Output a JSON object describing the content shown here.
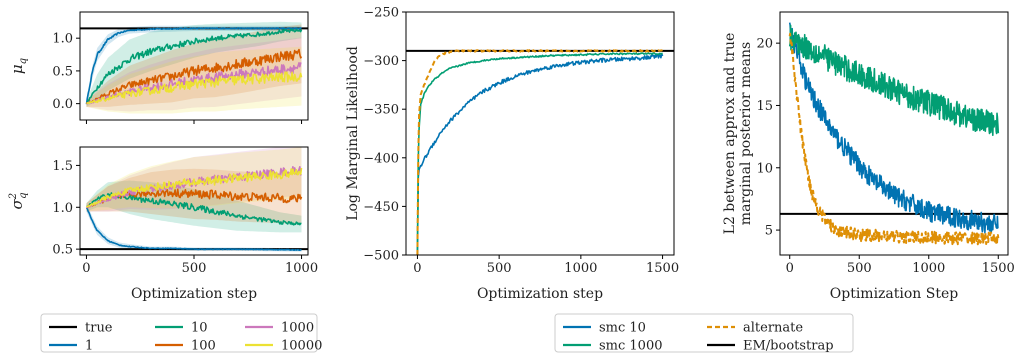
{
  "chart_data": [
    {
      "type": "line",
      "panel": "mu_q",
      "ylabel": "μ_q",
      "xlim": [
        -30,
        1030
      ],
      "ylim": [
        -0.25,
        1.4
      ],
      "xticks": [
        0,
        500,
        1000
      ],
      "yticks": [
        0.0,
        0.5,
        1.0
      ],
      "ytick_labels": [
        "0.0",
        "0.5",
        "1.0"
      ],
      "reference_line": {
        "name": "true",
        "value": 1.15
      },
      "series": [
        {
          "name": "1",
          "x": [
            0,
            25,
            50,
            100,
            150,
            200,
            300,
            500,
            700,
            1000
          ],
          "values": [
            0.0,
            0.45,
            0.75,
            0.98,
            1.08,
            1.12,
            1.14,
            1.15,
            1.15,
            1.15
          ],
          "band": [
            0.06,
            0.1,
            0.1,
            0.08,
            0.06,
            0.05,
            0.05,
            0.04,
            0.04,
            0.04
          ]
        },
        {
          "name": "10",
          "x": [
            0,
            50,
            100,
            200,
            300,
            400,
            500,
            600,
            700,
            800,
            900,
            1000
          ],
          "values": [
            0.0,
            0.25,
            0.45,
            0.68,
            0.8,
            0.88,
            0.95,
            1.0,
            1.03,
            1.06,
            1.1,
            1.12
          ],
          "band": [
            0.05,
            0.2,
            0.25,
            0.3,
            0.3,
            0.28,
            0.25,
            0.22,
            0.2,
            0.18,
            0.15,
            0.12
          ]
        },
        {
          "name": "100",
          "x": [
            0,
            100,
            200,
            300,
            400,
            500,
            600,
            700,
            800,
            900,
            1000
          ],
          "values": [
            0.0,
            0.15,
            0.28,
            0.35,
            0.42,
            0.5,
            0.55,
            0.6,
            0.66,
            0.72,
            0.76
          ],
          "band": [
            0.05,
            0.2,
            0.3,
            0.35,
            0.4,
            0.42,
            0.45,
            0.45,
            0.45,
            0.45,
            0.45
          ]
        },
        {
          "name": "1000",
          "x": [
            0,
            100,
            200,
            300,
            400,
            500,
            600,
            700,
            800,
            900,
            1000
          ],
          "values": [
            0.0,
            0.1,
            0.18,
            0.25,
            0.3,
            0.36,
            0.4,
            0.44,
            0.48,
            0.52,
            0.56
          ],
          "band": [
            0.05,
            0.2,
            0.3,
            0.35,
            0.4,
            0.42,
            0.45,
            0.45,
            0.45,
            0.45,
            0.45
          ]
        },
        {
          "name": "10000",
          "x": [
            0,
            100,
            200,
            300,
            400,
            500,
            600,
            700,
            800,
            900,
            1000
          ],
          "values": [
            0.0,
            0.08,
            0.15,
            0.2,
            0.25,
            0.3,
            0.33,
            0.36,
            0.38,
            0.4,
            0.42
          ],
          "band": [
            0.05,
            0.2,
            0.3,
            0.35,
            0.4,
            0.42,
            0.45,
            0.45,
            0.45,
            0.45,
            0.45
          ]
        }
      ]
    },
    {
      "type": "line",
      "panel": "sigma2_q",
      "ylabel": "σ²_q",
      "xlabel": "Optimization step",
      "xlim": [
        -30,
        1030
      ],
      "ylim": [
        0.43,
        1.72
      ],
      "xticks": [
        0,
        500,
        1000
      ],
      "yticks": [
        0.5,
        1.0,
        1.5
      ],
      "ytick_labels": [
        "0.5",
        "1.0",
        "1.5"
      ],
      "reference_line": {
        "name": "true",
        "value": 0.5
      },
      "series": [
        {
          "name": "1",
          "x": [
            0,
            25,
            50,
            100,
            150,
            200,
            300,
            400,
            500,
            700,
            1000
          ],
          "values": [
            1.0,
            0.85,
            0.72,
            0.6,
            0.55,
            0.53,
            0.51,
            0.51,
            0.5,
            0.5,
            0.49
          ],
          "band": [
            0.05,
            0.05,
            0.05,
            0.04,
            0.03,
            0.03,
            0.02,
            0.02,
            0.02,
            0.02,
            0.02
          ]
        },
        {
          "name": "10",
          "x": [
            0,
            50,
            100,
            200,
            300,
            400,
            500,
            600,
            700,
            800,
            900,
            1000
          ],
          "values": [
            1.0,
            1.1,
            1.15,
            1.12,
            1.08,
            1.04,
            1.0,
            0.95,
            0.9,
            0.86,
            0.82,
            0.8
          ],
          "band": [
            0.05,
            0.1,
            0.15,
            0.2,
            0.22,
            0.22,
            0.22,
            0.2,
            0.18,
            0.15,
            0.12,
            0.1
          ]
        },
        {
          "name": "100",
          "x": [
            0,
            100,
            200,
            300,
            400,
            500,
            600,
            700,
            800,
            900,
            1000
          ],
          "values": [
            1.0,
            1.1,
            1.15,
            1.17,
            1.17,
            1.16,
            1.15,
            1.13,
            1.12,
            1.11,
            1.1
          ],
          "band": [
            0.05,
            0.15,
            0.2,
            0.25,
            0.28,
            0.3,
            0.3,
            0.3,
            0.3,
            0.3,
            0.3
          ]
        },
        {
          "name": "1000",
          "x": [
            0,
            100,
            200,
            300,
            400,
            500,
            600,
            700,
            800,
            900,
            1000
          ],
          "values": [
            1.0,
            1.1,
            1.18,
            1.22,
            1.26,
            1.3,
            1.33,
            1.36,
            1.39,
            1.42,
            1.44
          ],
          "band": [
            0.05,
            0.15,
            0.2,
            0.25,
            0.28,
            0.3,
            0.3,
            0.3,
            0.3,
            0.3,
            0.3
          ]
        },
        {
          "name": "10000",
          "x": [
            0,
            100,
            200,
            300,
            400,
            500,
            600,
            700,
            800,
            900,
            1000
          ],
          "values": [
            1.0,
            1.12,
            1.2,
            1.24,
            1.27,
            1.3,
            1.32,
            1.35,
            1.37,
            1.39,
            1.42
          ],
          "band": [
            0.05,
            0.15,
            0.2,
            0.25,
            0.28,
            0.3,
            0.3,
            0.3,
            0.3,
            0.3,
            0.3
          ]
        }
      ]
    },
    {
      "type": "line",
      "panel": "log_marginal_likelihood",
      "ylabel": "Log Marginal Likelihood",
      "xlabel": "Optimization step",
      "xlim": [
        -70,
        1570
      ],
      "ylim": [
        -500,
        -250
      ],
      "xticks": [
        0,
        500,
        1000,
        1500
      ],
      "yticks": [
        -500,
        -450,
        -400,
        -350,
        -300,
        -250
      ],
      "ytick_labels": [
        "−500",
        "−450",
        "−400",
        "−350",
        "−300",
        "−250"
      ],
      "reference_line": {
        "name": "EM/bootstrap",
        "value": -290
      },
      "series": [
        {
          "name": "smc 10",
          "x": [
            0,
            5,
            10,
            20,
            40,
            60,
            100,
            150,
            200,
            300,
            400,
            500,
            600,
            700,
            800,
            900,
            1000,
            1100,
            1200,
            1300,
            1400,
            1500
          ],
          "values": [
            -500,
            -420,
            -412,
            -408,
            -402,
            -396,
            -385,
            -372,
            -362,
            -345,
            -332,
            -323,
            -316,
            -311,
            -307,
            -304,
            -302,
            -300,
            -299,
            -298,
            -297,
            -295
          ]
        },
        {
          "name": "smc 1000",
          "x": [
            0,
            5,
            10,
            20,
            40,
            60,
            100,
            150,
            200,
            300,
            400,
            500,
            600,
            800,
            1000,
            1200,
            1500
          ],
          "values": [
            -500,
            -400,
            -370,
            -345,
            -335,
            -328,
            -320,
            -313,
            -308,
            -303,
            -300,
            -298,
            -297,
            -295,
            -294,
            -293,
            -293
          ]
        },
        {
          "name": "alternate",
          "x": [
            0,
            3,
            6,
            10,
            20,
            40,
            60,
            80,
            100,
            130,
            160,
            200,
            250,
            300,
            1500
          ],
          "values": [
            -500,
            -420,
            -380,
            -355,
            -335,
            -325,
            -318,
            -310,
            -302,
            -296,
            -293,
            -291,
            -290,
            -290,
            -290
          ]
        }
      ]
    },
    {
      "type": "line",
      "panel": "l2_error",
      "ylabel": "L2 between approx and true",
      "ylabel2": "marginal posterior means",
      "xlabel": "Optimization Step",
      "xlim": [
        -70,
        1570
      ],
      "ylim": [
        3,
        22.5
      ],
      "xticks": [
        0,
        500,
        1000,
        1500
      ],
      "yticks": [
        5,
        10,
        15,
        20
      ],
      "ytick_labels": [
        "5",
        "10",
        "15",
        "20"
      ],
      "reference_line": {
        "name": "EM/bootstrap",
        "value": 6.3
      },
      "series": [
        {
          "name": "smc 10",
          "x": [
            0,
            50,
            100,
            150,
            200,
            300,
            400,
            500,
            600,
            700,
            800,
            900,
            1000,
            1100,
            1200,
            1300,
            1400,
            1500
          ],
          "values": [
            21,
            19.5,
            17.5,
            16,
            15,
            13,
            11.5,
            10.2,
            9,
            8.2,
            7.5,
            7,
            6.5,
            6.2,
            6.0,
            5.8,
            5.6,
            5.4
          ],
          "noise": 0.8
        },
        {
          "name": "smc 1000",
          "x": [
            0,
            100,
            200,
            300,
            400,
            500,
            600,
            700,
            800,
            900,
            1000,
            1100,
            1200,
            1300,
            1400,
            1500
          ],
          "values": [
            20.5,
            19.8,
            19.2,
            18.6,
            18.0,
            17.5,
            17.0,
            16.5,
            16.0,
            15.6,
            15.2,
            14.8,
            14.4,
            14.0,
            13.7,
            13.5
          ],
          "noise": 1.0
        },
        {
          "name": "alternate",
          "x": [
            0,
            20,
            40,
            60,
            80,
            100,
            130,
            160,
            200,
            250,
            300,
            350,
            400,
            500,
            700,
            1000,
            1500
          ],
          "values": [
            21,
            19,
            17,
            15,
            13,
            11.5,
            9.5,
            8,
            6.8,
            5.9,
            5.3,
            5.0,
            4.8,
            4.6,
            4.5,
            4.4,
            4.3
          ],
          "noise": 0.5
        }
      ]
    }
  ],
  "legend_left": {
    "entries": [
      {
        "label": "true",
        "color": "#000000",
        "style": "solid"
      },
      {
        "label": "1",
        "color": "#0173b2",
        "style": "solid"
      },
      {
        "label": "10",
        "color": "#029e73",
        "style": "solid"
      },
      {
        "label": "100",
        "color": "#d55e00",
        "style": "solid"
      },
      {
        "label": "1000",
        "color": "#cc78bc",
        "style": "solid"
      },
      {
        "label": "10000",
        "color": "#ece133",
        "style": "solid"
      }
    ]
  },
  "legend_right": {
    "entries": [
      {
        "label": "smc 10",
        "color": "#0173b2",
        "style": "solid"
      },
      {
        "label": "smc 1000",
        "color": "#029e73",
        "style": "solid"
      },
      {
        "label": "alternate",
        "color": "#de8f05",
        "style": "dashed"
      },
      {
        "label": "EM/bootstrap",
        "color": "#000000",
        "style": "solid"
      }
    ]
  },
  "colors": {
    "series_by_name": {
      "1": "#0173b2",
      "10": "#029e73",
      "100": "#d55e00",
      "1000": "#cc78bc",
      "10000": "#ece133",
      "smc 10": "#0173b2",
      "smc 1000": "#029e73",
      "alternate": "#de8f05"
    },
    "reference": "#000000"
  }
}
